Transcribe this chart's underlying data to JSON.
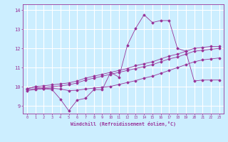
{
  "xlabel": "Windchill (Refroidissement éolien,°C)",
  "background_color": "#cceeff",
  "grid_color": "#ffffff",
  "line_color": "#993399",
  "xlim": [
    -0.5,
    23.5
  ],
  "ylim": [
    8.6,
    14.3
  ],
  "xticks": [
    0,
    1,
    2,
    3,
    4,
    5,
    6,
    7,
    8,
    9,
    10,
    11,
    12,
    13,
    14,
    15,
    16,
    17,
    18,
    19,
    20,
    21,
    22,
    23
  ],
  "yticks": [
    9,
    10,
    11,
    12,
    13,
    14
  ],
  "line1_x": [
    0,
    1,
    2,
    3,
    4,
    5,
    6,
    7,
    8,
    9,
    10,
    11,
    12,
    13,
    14,
    15,
    16,
    17,
    18,
    19,
    20,
    21,
    22,
    23
  ],
  "line1_y": [
    9.9,
    10.0,
    9.9,
    9.85,
    9.35,
    8.75,
    9.3,
    9.4,
    9.85,
    9.85,
    10.75,
    10.5,
    12.15,
    13.05,
    13.75,
    13.35,
    13.45,
    13.45,
    12.0,
    11.85,
    10.3,
    10.35,
    10.35,
    10.35
  ],
  "line2_x": [
    0,
    1,
    2,
    3,
    4,
    5,
    6,
    7,
    8,
    9,
    10,
    11,
    12,
    13,
    14,
    15,
    16,
    17,
    18,
    19,
    20,
    21,
    22,
    23
  ],
  "line2_y": [
    9.9,
    10.0,
    10.05,
    10.1,
    10.15,
    10.2,
    10.3,
    10.45,
    10.55,
    10.65,
    10.75,
    10.85,
    10.95,
    11.1,
    11.2,
    11.3,
    11.45,
    11.6,
    11.7,
    11.85,
    12.0,
    12.05,
    12.1,
    12.1
  ],
  "line3_x": [
    0,
    1,
    2,
    3,
    4,
    5,
    6,
    7,
    8,
    9,
    10,
    11,
    12,
    13,
    14,
    15,
    16,
    17,
    18,
    19,
    20,
    21,
    22,
    23
  ],
  "line3_y": [
    9.85,
    9.9,
    9.95,
    10.0,
    10.05,
    10.1,
    10.2,
    10.35,
    10.45,
    10.55,
    10.65,
    10.75,
    10.85,
    10.95,
    11.05,
    11.15,
    11.3,
    11.45,
    11.55,
    11.7,
    11.85,
    11.9,
    11.95,
    12.0
  ],
  "line4_x": [
    0,
    1,
    2,
    3,
    4,
    5,
    6,
    7,
    8,
    9,
    10,
    11,
    12,
    13,
    14,
    15,
    16,
    17,
    18,
    19,
    20,
    21,
    22,
    23
  ],
  "line4_y": [
    9.8,
    9.85,
    9.9,
    9.92,
    9.88,
    9.8,
    9.82,
    9.88,
    9.93,
    9.97,
    10.02,
    10.12,
    10.22,
    10.32,
    10.45,
    10.55,
    10.7,
    10.85,
    11.0,
    11.15,
    11.3,
    11.4,
    11.45,
    11.5
  ]
}
